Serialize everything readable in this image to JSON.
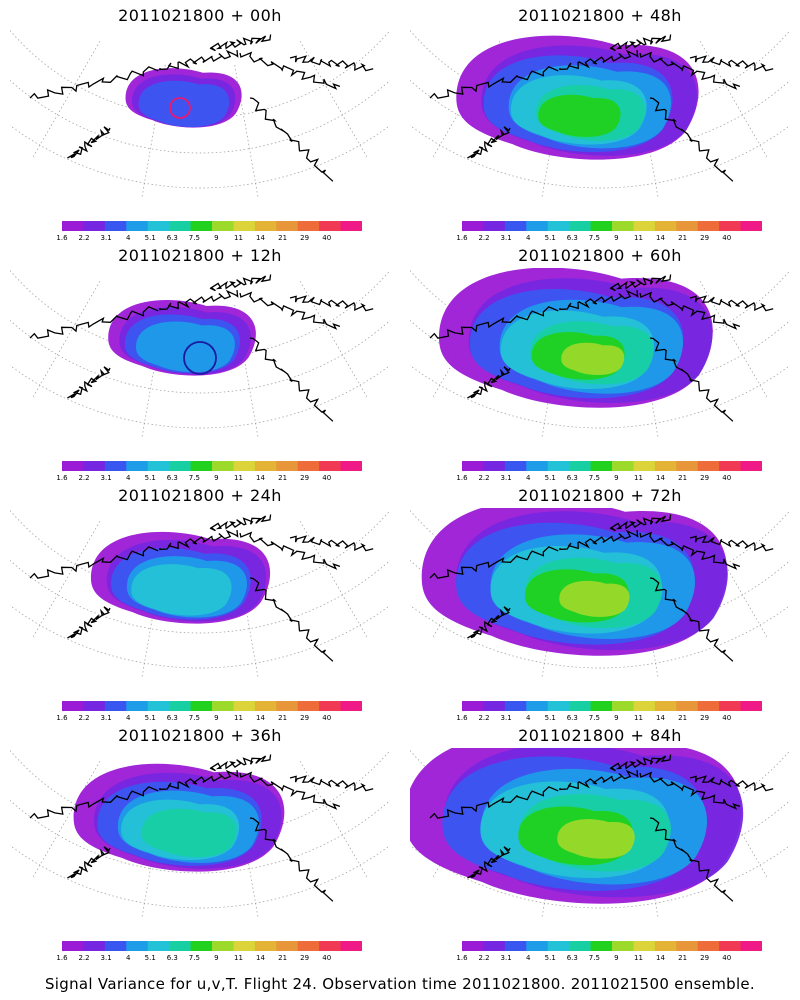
{
  "panels": [
    {
      "title": "2011021800 + 00h",
      "level": 0
    },
    {
      "title": "2011021800 + 48h",
      "level": 4
    },
    {
      "title": "2011021800 + 12h",
      "level": 1
    },
    {
      "title": "2011021800 + 60h",
      "level": 5
    },
    {
      "title": "2011021800 + 24h",
      "level": 2
    },
    {
      "title": "2011021800 + 72h",
      "level": 6
    },
    {
      "title": "2011021800 + 36h",
      "level": 3
    },
    {
      "title": "2011021800 + 84h",
      "level": 7
    }
  ],
  "colorbar": {
    "colors": [
      "#9b1ad6",
      "#7626e0",
      "#3a56f0",
      "#1f9ce8",
      "#24c2d6",
      "#18cfa4",
      "#21d11e",
      "#9bd92a",
      "#dbd43a",
      "#e4b437",
      "#e8963a",
      "#ee6b3a",
      "#f03a54",
      "#ef1a86"
    ],
    "tick_labels": [
      "1.6",
      "2.2",
      "3.1",
      "4",
      "5.1",
      "6.3",
      "7.5",
      "9",
      "11",
      "14",
      "21",
      "29",
      "40"
    ]
  },
  "footer": "Signal Variance for u,v,T. Flight 24. Observation time 2011021800. 2011021500 ensemble."
}
